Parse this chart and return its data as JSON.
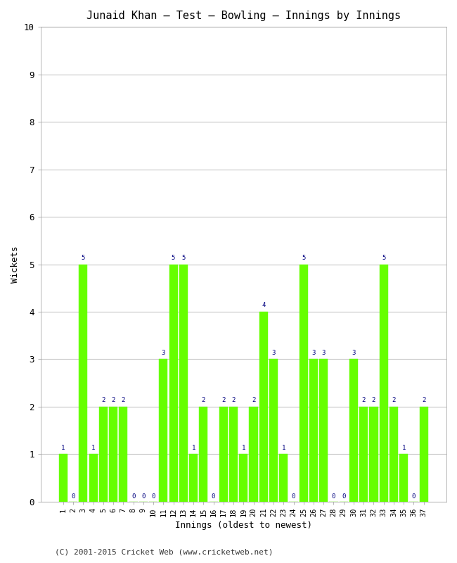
{
  "title": "Junaid Khan – Test – Bowling – Innings by Innings",
  "xlabel": "Innings (oldest to newest)",
  "ylabel": "Wickets",
  "footer": "(C) 2001-2015 Cricket Web (www.cricketweb.net)",
  "bar_color": "#66ff00",
  "bar_edge_color": "#66ff00",
  "label_color": "#000080",
  "background_color": "#ffffff",
  "grid_color": "#c8c8c8",
  "ylim": [
    0,
    10
  ],
  "yticks": [
    0,
    1,
    2,
    3,
    4,
    5,
    6,
    7,
    8,
    9,
    10
  ],
  "innings": [
    1,
    2,
    3,
    4,
    5,
    6,
    7,
    8,
    9,
    10,
    11,
    12,
    13,
    14,
    15,
    16,
    17,
    18,
    19,
    20,
    21,
    22,
    23,
    24,
    25,
    26,
    27,
    28,
    29,
    30,
    31,
    32,
    33,
    34,
    35,
    36,
    37
  ],
  "wickets": [
    1,
    0,
    5,
    1,
    2,
    2,
    2,
    0,
    0,
    0,
    3,
    5,
    5,
    1,
    2,
    0,
    2,
    2,
    1,
    2,
    4,
    3,
    1,
    0,
    5,
    3,
    3,
    0,
    0,
    3,
    2,
    2,
    5,
    2,
    1,
    0,
    2
  ]
}
